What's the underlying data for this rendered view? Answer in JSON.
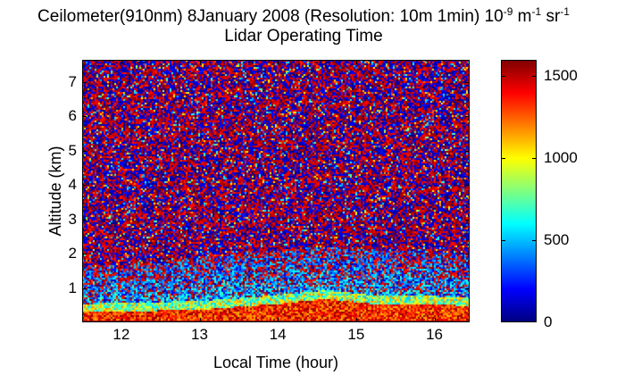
{
  "chart_data": {
    "type": "heatmap",
    "title_prefix": "Ceilometer(910nm) 8January 2008 (Resolution: 10m 1min) 10",
    "title_exp1": "-9",
    "title_mid": " m",
    "title_exp2": "-1",
    "title_mid2": " sr",
    "title_exp3": "-1",
    "subtitle": "Lidar Operating Time",
    "xlabel": "Local Time (hour)",
    "ylabel": "Altitude (km)",
    "xlim": [
      11.5,
      16.45
    ],
    "ylim": [
      0,
      7.65
    ],
    "xticks": [
      12,
      13,
      14,
      15,
      16
    ],
    "yticks": [
      1,
      2,
      3,
      4,
      5,
      6,
      7
    ],
    "colorbar": {
      "range": [
        0,
        1600
      ],
      "ticks": [
        0,
        500,
        1000,
        1500
      ],
      "colormap": "jet"
    },
    "surface_layer": {
      "description_values": "high backscatter near ground",
      "top_altitude_km_at_x": [
        [
          11.5,
          0.3
        ],
        [
          13.0,
          0.38
        ],
        [
          14.0,
          0.55
        ],
        [
          14.6,
          0.7
        ],
        [
          15.2,
          0.55
        ],
        [
          16.45,
          0.5
        ]
      ],
      "value_range": [
        1100,
        1600
      ]
    },
    "aerosol_layer": {
      "top_altitude_km_at_x": [
        [
          11.5,
          1.6
        ],
        [
          13.0,
          1.9
        ],
        [
          14.5,
          2.2
        ],
        [
          16.45,
          2.0
        ]
      ],
      "value_range": [
        300,
        800
      ]
    },
    "noise_region": {
      "above_km": 2.0,
      "value_range": [
        0,
        1600
      ],
      "mix": "red and dark blue speckle"
    }
  }
}
